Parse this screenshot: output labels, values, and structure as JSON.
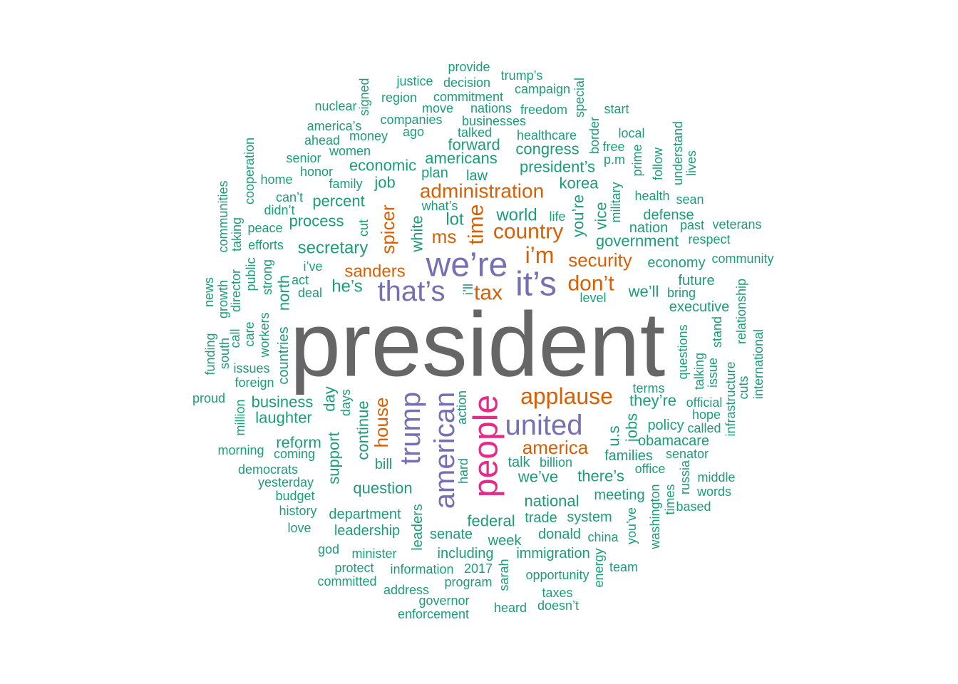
{
  "colors": {
    "gray": "#666666",
    "pink": "#E7298A",
    "purple": "#7570B3",
    "orange": "#D95F02",
    "green": "#1B9E77"
  },
  "words": [
    {
      "text": "president",
      "color": "gray"
    },
    {
      "text": "people",
      "color": "pink"
    },
    {
      "text": "we’re",
      "color": "purple"
    },
    {
      "text": "it’s",
      "color": "purple"
    },
    {
      "text": "that’s",
      "color": "purple"
    },
    {
      "text": "american",
      "color": "purple"
    },
    {
      "text": "united",
      "color": "purple"
    },
    {
      "text": "trump",
      "color": "purple"
    },
    {
      "text": "applause",
      "color": "orange"
    },
    {
      "text": "administration",
      "color": "orange"
    },
    {
      "text": "country",
      "color": "orange"
    },
    {
      "text": "i’m",
      "color": "orange"
    },
    {
      "text": "don’t",
      "color": "orange"
    },
    {
      "text": "tax",
      "color": "orange"
    },
    {
      "text": "security",
      "color": "orange"
    },
    {
      "text": "time",
      "color": "orange"
    },
    {
      "text": "ms",
      "color": "orange"
    },
    {
      "text": "spicer",
      "color": "orange"
    },
    {
      "text": "sanders",
      "color": "orange"
    },
    {
      "text": "house",
      "color": "orange"
    },
    {
      "text": "america",
      "color": "orange"
    },
    {
      "text": "world",
      "color": "green"
    },
    {
      "text": "lot",
      "color": "green"
    },
    {
      "text": "white",
      "color": "green"
    },
    {
      "text": "you’re",
      "color": "green"
    },
    {
      "text": "vice",
      "color": "green"
    },
    {
      "text": "government",
      "color": "green"
    },
    {
      "text": "secretary",
      "color": "green"
    },
    {
      "text": "he’s",
      "color": "green"
    },
    {
      "text": "north",
      "color": "green"
    },
    {
      "text": "countries",
      "color": "green"
    },
    {
      "text": "korea",
      "color": "green"
    },
    {
      "text": "americans",
      "color": "green"
    },
    {
      "text": "president’s",
      "color": "green"
    },
    {
      "text": "economic",
      "color": "green"
    },
    {
      "text": "job",
      "color": "green"
    },
    {
      "text": "percent",
      "color": "green"
    },
    {
      "text": "process",
      "color": "green"
    },
    {
      "text": "forward",
      "color": "green"
    },
    {
      "text": "congress",
      "color": "green"
    },
    {
      "text": "law",
      "color": "green"
    },
    {
      "text": "plan",
      "color": "green"
    },
    {
      "text": "economy",
      "color": "green"
    },
    {
      "text": "we’ll",
      "color": "green"
    },
    {
      "text": "executive",
      "color": "green"
    },
    {
      "text": "business",
      "color": "green"
    },
    {
      "text": "laughter",
      "color": "green"
    },
    {
      "text": "day",
      "color": "green"
    },
    {
      "text": "support",
      "color": "green"
    },
    {
      "text": "continue",
      "color": "green"
    },
    {
      "text": "question",
      "color": "green"
    },
    {
      "text": "reform",
      "color": "green"
    },
    {
      "text": "they’re",
      "color": "green"
    },
    {
      "text": "jobs",
      "color": "green"
    },
    {
      "text": "u.s",
      "color": "green"
    },
    {
      "text": "we’ve",
      "color": "green"
    },
    {
      "text": "there’s",
      "color": "green"
    },
    {
      "text": "national",
      "color": "green"
    },
    {
      "text": "federal",
      "color": "green"
    },
    {
      "text": "department",
      "color": "green"
    },
    {
      "text": "trade",
      "color": "green"
    },
    {
      "text": "system",
      "color": "green"
    },
    {
      "text": "leaders",
      "color": "green"
    },
    {
      "text": "week",
      "color": "green"
    },
    {
      "text": "senate",
      "color": "green"
    },
    {
      "text": "donald",
      "color": "green"
    },
    {
      "text": "leadership",
      "color": "green"
    },
    {
      "text": "including",
      "color": "green"
    },
    {
      "text": "immigration",
      "color": "green"
    },
    {
      "text": "meeting",
      "color": "green"
    },
    {
      "text": "policy",
      "color": "green"
    },
    {
      "text": "obamacare",
      "color": "green"
    },
    {
      "text": "families",
      "color": "green"
    },
    {
      "text": "talk",
      "color": "green"
    },
    {
      "text": "billion",
      "color": "green"
    },
    {
      "text": "bill",
      "color": "green"
    },
    {
      "text": "military",
      "color": "green"
    },
    {
      "text": "nation",
      "color": "green"
    },
    {
      "text": "defense",
      "color": "green"
    },
    {
      "text": "health",
      "color": "green"
    },
    {
      "text": "life",
      "color": "green"
    },
    {
      "text": "future",
      "color": "green"
    },
    {
      "text": "bring",
      "color": "green"
    },
    {
      "text": "healthcare",
      "color": "green"
    },
    {
      "text": "businesses",
      "color": "green"
    },
    {
      "text": "companies",
      "color": "green"
    },
    {
      "text": "money",
      "color": "green"
    },
    {
      "text": "women",
      "color": "green"
    },
    {
      "text": "family",
      "color": "green"
    },
    {
      "text": "deal",
      "color": "green"
    },
    {
      "text": "act",
      "color": "green"
    },
    {
      "text": "i’ve",
      "color": "green"
    },
    {
      "text": "issues",
      "color": "green"
    },
    {
      "text": "foreign",
      "color": "green"
    },
    {
      "text": "coming",
      "color": "green"
    },
    {
      "text": "yesterday",
      "color": "green"
    },
    {
      "text": "budget",
      "color": "green"
    },
    {
      "text": "democrats",
      "color": "green"
    },
    {
      "text": "morning",
      "color": "green"
    },
    {
      "text": "history",
      "color": "green"
    },
    {
      "text": "love",
      "color": "green"
    },
    {
      "text": "god",
      "color": "green"
    },
    {
      "text": "minister",
      "color": "green"
    },
    {
      "text": "protect",
      "color": "green"
    },
    {
      "text": "committed",
      "color": "green"
    },
    {
      "text": "information",
      "color": "green"
    },
    {
      "text": "address",
      "color": "green"
    },
    {
      "text": "program",
      "color": "green"
    },
    {
      "text": "2017",
      "color": "green"
    },
    {
      "text": "governor",
      "color": "green"
    },
    {
      "text": "enforcement",
      "color": "green"
    },
    {
      "text": "heard",
      "color": "green"
    },
    {
      "text": "sarah",
      "color": "green"
    },
    {
      "text": "opportunity",
      "color": "green"
    },
    {
      "text": "taxes",
      "color": "green"
    },
    {
      "text": "doesn’t",
      "color": "green"
    },
    {
      "text": "energy",
      "color": "green"
    },
    {
      "text": "team",
      "color": "green"
    },
    {
      "text": "china",
      "color": "green"
    },
    {
      "text": "you’ve",
      "color": "green"
    },
    {
      "text": "washington",
      "color": "green"
    },
    {
      "text": "office",
      "color": "green"
    },
    {
      "text": "times",
      "color": "green"
    },
    {
      "text": "based",
      "color": "green"
    },
    {
      "text": "russia",
      "color": "green"
    },
    {
      "text": "middle",
      "color": "green"
    },
    {
      "text": "words",
      "color": "green"
    },
    {
      "text": "senator",
      "color": "green"
    },
    {
      "text": "called",
      "color": "green"
    },
    {
      "text": "hope",
      "color": "green"
    },
    {
      "text": "official",
      "color": "green"
    },
    {
      "text": "terms",
      "color": "green"
    },
    {
      "text": "questions",
      "color": "green"
    },
    {
      "text": "talking",
      "color": "green"
    },
    {
      "text": "issue",
      "color": "green"
    },
    {
      "text": "stand",
      "color": "green"
    },
    {
      "text": "infrastructure",
      "color": "green"
    },
    {
      "text": "cuts",
      "color": "green"
    },
    {
      "text": "international",
      "color": "green"
    },
    {
      "text": "relationship",
      "color": "green"
    },
    {
      "text": "community",
      "color": "green"
    },
    {
      "text": "respect",
      "color": "green"
    },
    {
      "text": "veterans",
      "color": "green"
    },
    {
      "text": "past",
      "color": "green"
    },
    {
      "text": "sean",
      "color": "green"
    },
    {
      "text": "lives",
      "color": "green"
    },
    {
      "text": "understand",
      "color": "green"
    },
    {
      "text": "follow",
      "color": "green"
    },
    {
      "text": "prime",
      "color": "green"
    },
    {
      "text": "p.m",
      "color": "green"
    },
    {
      "text": "free",
      "color": "green"
    },
    {
      "text": "local",
      "color": "green"
    },
    {
      "text": "border",
      "color": "green"
    },
    {
      "text": "start",
      "color": "green"
    },
    {
      "text": "special",
      "color": "green"
    },
    {
      "text": "freedom",
      "color": "green"
    },
    {
      "text": "campaign",
      "color": "green"
    },
    {
      "text": "trump’s",
      "color": "green"
    },
    {
      "text": "provide",
      "color": "green"
    },
    {
      "text": "decision",
      "color": "green"
    },
    {
      "text": "justice",
      "color": "green"
    },
    {
      "text": "commitment",
      "color": "green"
    },
    {
      "text": "region",
      "color": "green"
    },
    {
      "text": "nations",
      "color": "green"
    },
    {
      "text": "move",
      "color": "green"
    },
    {
      "text": "signed",
      "color": "green"
    },
    {
      "text": "nuclear",
      "color": "green"
    },
    {
      "text": "america’s",
      "color": "green"
    },
    {
      "text": "ago",
      "color": "green"
    },
    {
      "text": "talked",
      "color": "green"
    },
    {
      "text": "ahead",
      "color": "green"
    },
    {
      "text": "senior",
      "color": "green"
    },
    {
      "text": "honor",
      "color": "green"
    },
    {
      "text": "home",
      "color": "green"
    },
    {
      "text": "cooperation",
      "color": "green"
    },
    {
      "text": "can’t",
      "color": "green"
    },
    {
      "text": "didn’t",
      "color": "green"
    },
    {
      "text": "what’s",
      "color": "green"
    },
    {
      "text": "peace",
      "color": "green"
    },
    {
      "text": "efforts",
      "color": "green"
    },
    {
      "text": "taking",
      "color": "green"
    },
    {
      "text": "communities",
      "color": "green"
    },
    {
      "text": "public",
      "color": "green"
    },
    {
      "text": "strong",
      "color": "green"
    },
    {
      "text": "director",
      "color": "green"
    },
    {
      "text": "growth",
      "color": "green"
    },
    {
      "text": "news",
      "color": "green"
    },
    {
      "text": "call",
      "color": "green"
    },
    {
      "text": "care",
      "color": "green"
    },
    {
      "text": "workers",
      "color": "green"
    },
    {
      "text": "south",
      "color": "green"
    },
    {
      "text": "funding",
      "color": "green"
    },
    {
      "text": "proud",
      "color": "green"
    },
    {
      "text": "million",
      "color": "green"
    },
    {
      "text": "days",
      "color": "green"
    },
    {
      "text": "action",
      "color": "green"
    },
    {
      "text": "hard",
      "color": "green"
    },
    {
      "text": "cut",
      "color": "green"
    },
    {
      "text": "i’ll",
      "color": "green"
    },
    {
      "text": "level",
      "color": "green"
    }
  ]
}
